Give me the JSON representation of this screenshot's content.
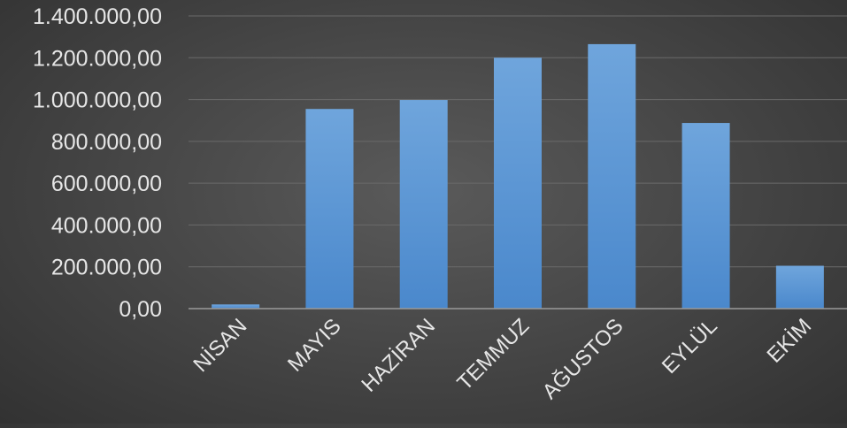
{
  "chart_data": {
    "type": "bar",
    "categories": [
      "NİSAN",
      "MAYIS",
      "HAZİRAN",
      "TEMMUZ",
      "AĞUSTOS",
      "EYLÜL",
      "EKİM"
    ],
    "values": [
      20000,
      955000,
      998000,
      1200000,
      1265000,
      888000,
      205000
    ],
    "ylim": [
      0,
      1400000
    ],
    "yticks": [
      0,
      200000,
      400000,
      600000,
      800000,
      1000000,
      1200000,
      1400000
    ],
    "ytick_labels": [
      "0,00",
      "200.000,00",
      "400.000,00",
      "600.000,00",
      "800.000,00",
      "1.000.000,00",
      "1.200.000,00",
      "1.400.000,00"
    ],
    "grid": true,
    "legend": "none",
    "colors": {
      "bar_top": "#6fa5dc",
      "bar_bottom": "#4a88cc",
      "grid": "#6a6a6a",
      "axis": "#9a9a9a",
      "text": "#e6e6e6"
    }
  }
}
